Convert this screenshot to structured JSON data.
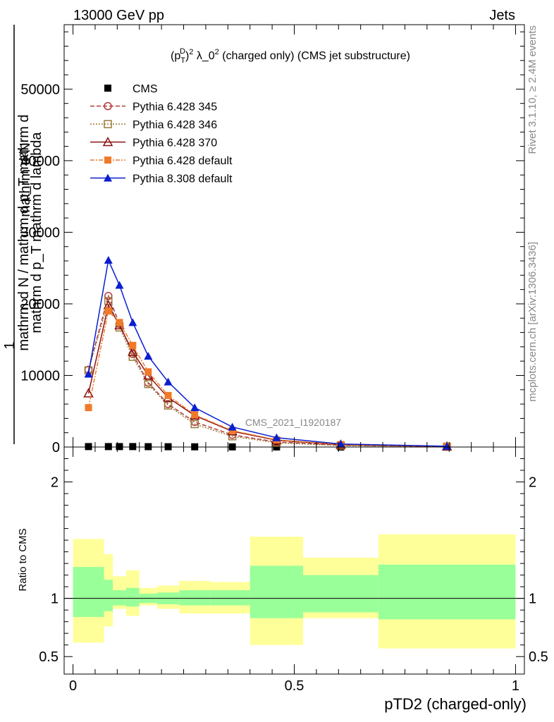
{
  "header": {
    "left": "13000 GeV pp",
    "right": "Jets"
  },
  "side_labels": {
    "rivet": "Rivet 3.1.10, ≥ 2.4M events",
    "mcplots": "mcplots.cern.ch [arXiv:1306.3436]"
  },
  "watermark": "CMS_2021_I1920187",
  "chart_data": [
    {
      "type": "line",
      "title": "(p_T^D)^2 λ_0^2 (charged only) (CMS jet substructure)",
      "title_parts": {
        "open": "(p",
        "sup1": "D",
        "sub1": "T",
        "close": ")",
        "sup2": "2",
        "mid": " λ_0",
        "sup3": "2",
        "rest": " (charged only) (CMS jet substructure)"
      },
      "ylabel_lines": [
        "mathrm d²N",
        "mathrm d p_T mathrm d lambda",
        "1",
        "mathrm d N / mathrm d p_T mathrm d"
      ],
      "xlim": [
        -0.02,
        1.02
      ],
      "ylim": [
        0,
        59000
      ],
      "yticks": [
        0,
        10000,
        20000,
        30000,
        40000,
        50000
      ],
      "ytick_labels": [
        "0",
        "10000",
        "20000",
        "30000",
        "40000",
        "50000"
      ],
      "x": [
        0.035,
        0.08,
        0.105,
        0.135,
        0.17,
        0.215,
        0.275,
        0.36,
        0.46,
        0.605,
        0.845
      ],
      "series": [
        {
          "name": "CMS",
          "color": "#000000",
          "marker": "square-filled",
          "dash": "",
          "values": [
            60,
            60,
            60,
            60,
            50,
            40,
            30,
            20,
            10,
            5,
            2
          ]
        },
        {
          "name": "Pythia 6.428 345",
          "color": "#b03a3a",
          "marker": "circle-open",
          "dash": "6,3",
          "values": [
            10800,
            21100,
            17200,
            13000,
            9000,
            6000,
            3500,
            1700,
            700,
            250,
            60
          ]
        },
        {
          "name": "Pythia 6.428 346",
          "color": "#9a7a3a",
          "marker": "square-open",
          "dash": "2,2",
          "values": [
            10700,
            20400,
            16700,
            12600,
            8800,
            5800,
            3200,
            1500,
            600,
            200,
            50
          ]
        },
        {
          "name": "Pythia 6.428 370",
          "color": "#8b1010",
          "marker": "triangle-open",
          "dash": "",
          "values": [
            7500,
            19800,
            17000,
            13300,
            10000,
            6900,
            4400,
            2200,
            950,
            320,
            80
          ]
        },
        {
          "name": "Pythia 6.428 default",
          "color": "#f07a28",
          "marker": "square-filled",
          "dash": "6,2,2,2",
          "values": [
            5500,
            19000,
            17400,
            14200,
            10500,
            7200,
            4500,
            2300,
            1000,
            350,
            90
          ]
        },
        {
          "name": "Pythia 8.308 default",
          "color": "#0a1ed0",
          "marker": "triangle-filled",
          "dash": "",
          "values": [
            10200,
            26100,
            22600,
            17400,
            12700,
            9100,
            5500,
            2800,
            1300,
            420,
            110
          ]
        }
      ],
      "legend_position": "top-left"
    },
    {
      "type": "area",
      "ylabel": "Ratio to CMS",
      "xlabel": "pTD2 (charged-only)",
      "xlim": [
        -0.02,
        1.02
      ],
      "ylim": [
        0.35,
        2.3
      ],
      "yticks": [
        0.5,
        1,
        2
      ],
      "ytick_labels": [
        "0.5",
        "1",
        "2"
      ],
      "xticks": [
        0,
        0.5,
        1
      ],
      "xtick_labels": [
        "0",
        "0.5",
        "1"
      ],
      "reference_line": 1,
      "band_colors": {
        "inner": "#99ff99",
        "outer": "#ffff99"
      },
      "bins": [
        {
          "lo": 0.0,
          "hi": 0.07,
          "in_lo": 0.84,
          "in_hi": 1.27,
          "out_lo": 0.62,
          "out_hi": 1.51
        },
        {
          "lo": 0.07,
          "hi": 0.09,
          "in_lo": 0.89,
          "in_hi": 1.16,
          "out_lo": 0.76,
          "out_hi": 1.38
        },
        {
          "lo": 0.09,
          "hi": 0.12,
          "in_lo": 0.94,
          "in_hi": 1.07,
          "out_lo": 0.91,
          "out_hi": 1.19
        },
        {
          "lo": 0.12,
          "hi": 0.15,
          "in_lo": 0.93,
          "in_hi": 1.09,
          "out_lo": 0.85,
          "out_hi": 1.24
        },
        {
          "lo": 0.15,
          "hi": 0.19,
          "in_lo": 0.96,
          "in_hi": 1.04,
          "out_lo": 0.94,
          "out_hi": 1.09
        },
        {
          "lo": 0.19,
          "hi": 0.24,
          "in_lo": 0.95,
          "in_hi": 1.05,
          "out_lo": 0.91,
          "out_hi": 1.11
        },
        {
          "lo": 0.24,
          "hi": 0.31,
          "in_lo": 0.94,
          "in_hi": 1.07,
          "out_lo": 0.87,
          "out_hi": 1.15
        },
        {
          "lo": 0.31,
          "hi": 0.4,
          "in_lo": 0.94,
          "in_hi": 1.07,
          "out_lo": 0.87,
          "out_hi": 1.14
        },
        {
          "lo": 0.4,
          "hi": 0.52,
          "in_lo": 0.83,
          "in_hi": 1.28,
          "out_lo": 0.6,
          "out_hi": 1.53
        },
        {
          "lo": 0.52,
          "hi": 0.69,
          "in_lo": 0.88,
          "in_hi": 1.2,
          "out_lo": 0.83,
          "out_hi": 1.35
        },
        {
          "lo": 0.69,
          "hi": 1.0,
          "in_lo": 0.82,
          "in_hi": 1.29,
          "out_lo": 0.57,
          "out_hi": 1.55
        }
      ]
    }
  ]
}
